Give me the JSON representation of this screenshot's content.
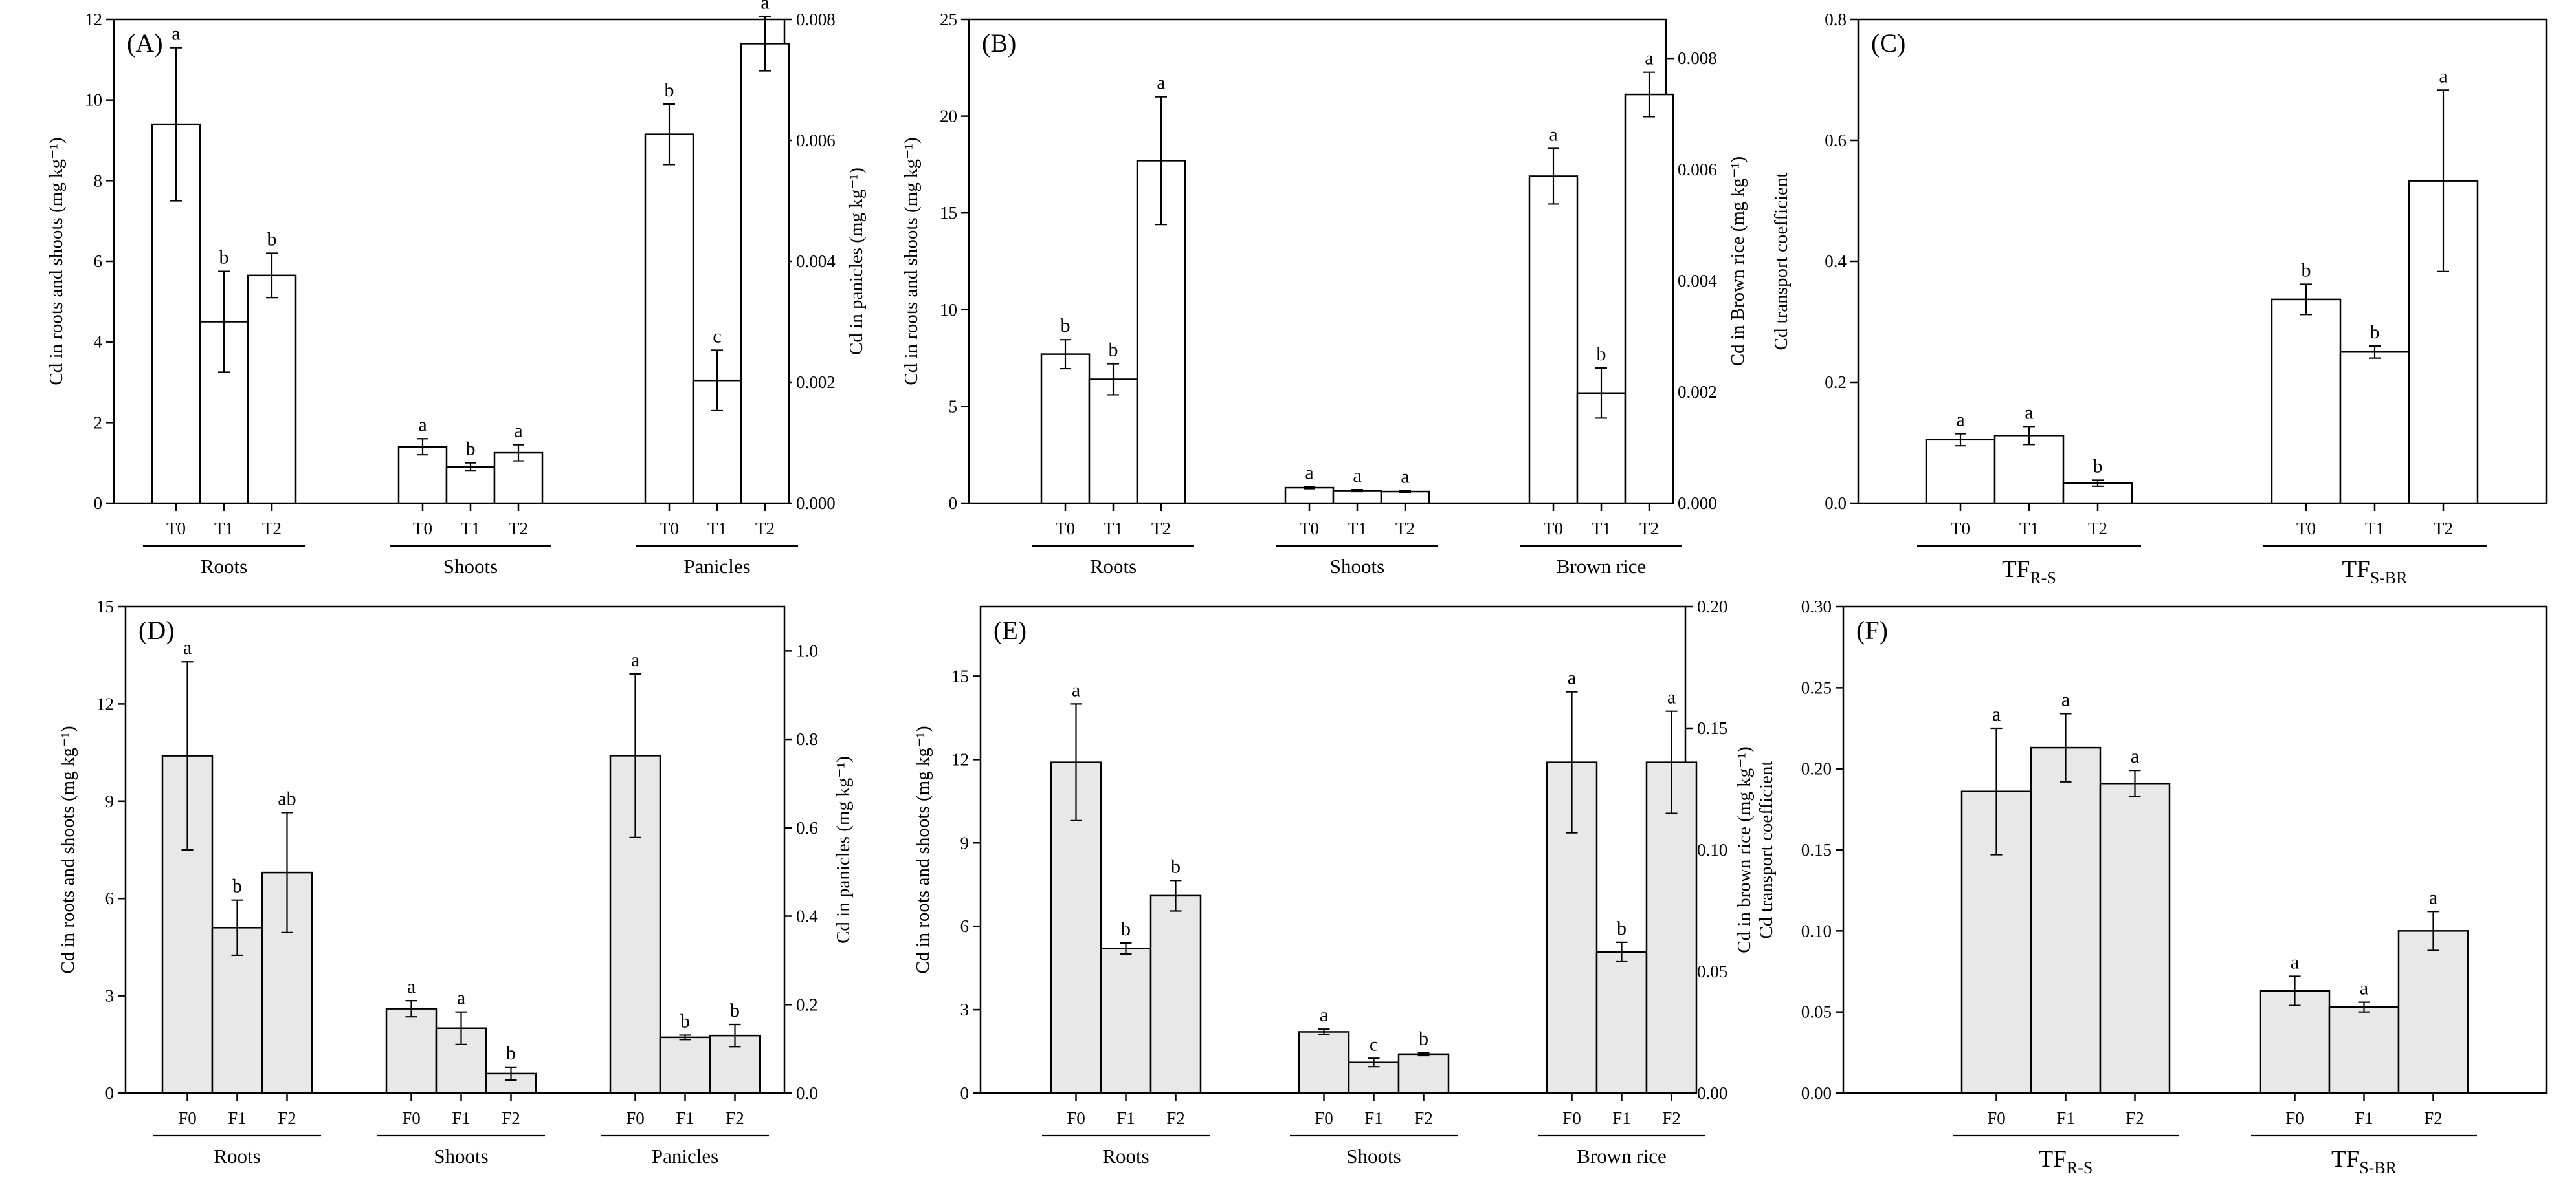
{
  "chart_data": [
    {
      "panel_label": "(A)",
      "type": "bar",
      "fill": "#ffffff",
      "ylabel": "Cd in roots and shoots (mg kg⁻¹)",
      "y2label": "Cd in panicles (mg kg⁻¹)",
      "ylim": [
        0,
        12
      ],
      "yticks": [
        "0",
        "2",
        "4",
        "6",
        "8",
        "10",
        "12"
      ],
      "y2lim": [
        0,
        0.008
      ],
      "y2ticks": [
        "0.000",
        "0.002",
        "0.004",
        "0.006",
        "0.008"
      ],
      "groups": [
        {
          "name": "Roots",
          "axis": "left",
          "bars": [
            {
              "x": "T0",
              "value": 9.4,
              "err": 1.9,
              "letter": "a"
            },
            {
              "x": "T1",
              "value": 4.5,
              "err": 1.25,
              "letter": "b"
            },
            {
              "x": "T2",
              "value": 5.65,
              "err": 0.55,
              "letter": "b"
            }
          ]
        },
        {
          "name": "Shoots",
          "axis": "left",
          "bars": [
            {
              "x": "T0",
              "value": 1.4,
              "err": 0.2,
              "letter": "a"
            },
            {
              "x": "T1",
              "value": 0.9,
              "err": 0.1,
              "letter": "b"
            },
            {
              "x": "T2",
              "value": 1.25,
              "err": 0.2,
              "letter": "a"
            }
          ]
        },
        {
          "name": "Panicles",
          "axis": "right",
          "bars": [
            {
              "x": "T0",
              "value": 0.0061,
              "err": 0.0005,
              "letter": "b"
            },
            {
              "x": "T1",
              "value": 0.00203,
              "err": 0.0005,
              "letter": "c"
            },
            {
              "x": "T2",
              "value": 0.0076,
              "err": 0.00045,
              "letter": "a"
            }
          ]
        }
      ]
    },
    {
      "panel_label": "(B)",
      "type": "bar",
      "fill": "#ffffff",
      "ylabel": "Cd in roots and shoots (mg kg⁻¹)",
      "y2label": "Cd in Brown rice (mg kg⁻¹)",
      "ylim": [
        0,
        25
      ],
      "yticks": [
        "0",
        "5",
        "10",
        "15",
        "20",
        "25"
      ],
      "y2lim": [
        0,
        0.0087
      ],
      "y2ticks": [
        "0.000",
        "0.002",
        "0.004",
        "0.006",
        "0.008"
      ],
      "groups": [
        {
          "name": "Roots",
          "axis": "left",
          "bars": [
            {
              "x": "T0",
              "value": 7.7,
              "err": 0.75,
              "letter": "b"
            },
            {
              "x": "T1",
              "value": 6.4,
              "err": 0.8,
              "letter": "b"
            },
            {
              "x": "T2",
              "value": 17.7,
              "err": 3.3,
              "letter": "a"
            }
          ]
        },
        {
          "name": "Shoots",
          "axis": "left",
          "bars": [
            {
              "x": "T0",
              "value": 0.8,
              "err": 0.05,
              "letter": "a"
            },
            {
              "x": "T1",
              "value": 0.65,
              "err": 0.05,
              "letter": "a"
            },
            {
              "x": "T2",
              "value": 0.6,
              "err": 0.05,
              "letter": "a"
            }
          ]
        },
        {
          "name": "Brown rice",
          "axis": "right",
          "bars": [
            {
              "x": "T0",
              "value": 0.00588,
              "err": 0.0005,
              "letter": "a"
            },
            {
              "x": "T1",
              "value": 0.00198,
              "err": 0.00045,
              "letter": "b"
            },
            {
              "x": "T2",
              "value": 0.00735,
              "err": 0.0004,
              "letter": "a"
            }
          ]
        }
      ]
    },
    {
      "panel_label": "(C)",
      "type": "bar",
      "fill": "#ffffff",
      "ylabel": "Cd transport coefficient",
      "ylim": [
        0,
        0.8
      ],
      "yticks": [
        "0.0",
        "0.2",
        "0.4",
        "0.6",
        "0.8"
      ],
      "groups": [
        {
          "name": "TF",
          "sub": "R-S",
          "axis": "left",
          "bars": [
            {
              "x": "T0",
              "value": 0.105,
              "err": 0.01,
              "letter": "a"
            },
            {
              "x": "T1",
              "value": 0.112,
              "err": 0.015,
              "letter": "a"
            },
            {
              "x": "T2",
              "value": 0.033,
              "err": 0.005,
              "letter": "b"
            }
          ]
        },
        {
          "name": "TF",
          "sub": "S-BR",
          "axis": "left",
          "bars": [
            {
              "x": "T0",
              "value": 0.337,
              "err": 0.025,
              "letter": "b"
            },
            {
              "x": "T1",
              "value": 0.25,
              "err": 0.01,
              "letter": "b"
            },
            {
              "x": "T2",
              "value": 0.533,
              "err": 0.15,
              "letter": "a"
            }
          ]
        }
      ]
    },
    {
      "panel_label": "(D)",
      "type": "bar",
      "fill": "#e8e8e8",
      "ylabel": "Cd in roots and shoots (mg kg⁻¹)",
      "y2label": "Cd in panicles (mg kg⁻¹)",
      "ylim": [
        0,
        15
      ],
      "yticks": [
        "0",
        "3",
        "6",
        "9",
        "12",
        "15"
      ],
      "y2lim": [
        0,
        1.1
      ],
      "y2ticks": [
        "0.0",
        "0.2",
        "0.4",
        "0.6",
        "0.8",
        "1.0"
      ],
      "groups": [
        {
          "name": "Roots",
          "axis": "left",
          "bars": [
            {
              "x": "F0",
              "value": 10.4,
              "err": 2.9,
              "letter": "a"
            },
            {
              "x": "F1",
              "value": 5.1,
              "err": 0.85,
              "letter": "b"
            },
            {
              "x": "F2",
              "value": 6.8,
              "err": 1.85,
              "letter": "ab"
            }
          ]
        },
        {
          "name": "Shoots",
          "axis": "left",
          "bars": [
            {
              "x": "F0",
              "value": 2.6,
              "err": 0.25,
              "letter": "a"
            },
            {
              "x": "F1",
              "value": 2.0,
              "err": 0.5,
              "letter": "a"
            },
            {
              "x": "F2",
              "value": 0.6,
              "err": 0.2,
              "letter": "b"
            }
          ]
        },
        {
          "name": "Panicles",
          "axis": "right",
          "bars": [
            {
              "x": "F0",
              "value": 0.763,
              "err": 0.185,
              "letter": "a"
            },
            {
              "x": "F1",
              "value": 0.126,
              "err": 0.005,
              "letter": "b"
            },
            {
              "x": "F2",
              "value": 0.13,
              "err": 0.025,
              "letter": "b"
            }
          ]
        }
      ]
    },
    {
      "panel_label": "(E)",
      "type": "bar",
      "fill": "#e8e8e8",
      "ylabel": "Cd in roots and shoots (mg kg⁻¹)",
      "y2label": "Cd in brown rice (mg kg⁻¹)",
      "ylim": [
        0,
        17.5
      ],
      "yticks": [
        "0",
        "3",
        "6",
        "9",
        "12",
        "15"
      ],
      "y2lim": [
        0,
        0.2
      ],
      "y2ticks": [
        "0.00",
        "0.05",
        "0.10",
        "0.15",
        "0.20"
      ],
      "groups": [
        {
          "name": "Roots",
          "axis": "left",
          "bars": [
            {
              "x": "F0",
              "value": 11.9,
              "err": 2.1,
              "letter": "a"
            },
            {
              "x": "F1",
              "value": 5.2,
              "err": 0.2,
              "letter": "b"
            },
            {
              "x": "F2",
              "value": 7.1,
              "err": 0.55,
              "letter": "b"
            }
          ]
        },
        {
          "name": "Shoots",
          "axis": "left",
          "bars": [
            {
              "x": "F0",
              "value": 2.2,
              "err": 0.1,
              "letter": "a"
            },
            {
              "x": "F1",
              "value": 1.1,
              "err": 0.15,
              "letter": "c"
            },
            {
              "x": "F2",
              "value": 1.4,
              "err": 0.05,
              "letter": "b"
            }
          ]
        },
        {
          "name": "Brown rice",
          "axis": "right",
          "bars": [
            {
              "x": "F0",
              "value": 0.136,
              "err": 0.029,
              "letter": "a"
            },
            {
              "x": "F1",
              "value": 0.058,
              "err": 0.004,
              "letter": "b"
            },
            {
              "x": "F2",
              "value": 0.136,
              "err": 0.021,
              "letter": "a"
            }
          ]
        }
      ]
    },
    {
      "panel_label": "(F)",
      "type": "bar",
      "fill": "#e8e8e8",
      "ylabel": "Cd transport coefficient",
      "ylim": [
        0,
        0.3
      ],
      "yticks": [
        "0.00",
        "0.05",
        "0.10",
        "0.15",
        "0.20",
        "0.25",
        "0.30"
      ],
      "groups": [
        {
          "name": "TF",
          "sub": "R-S",
          "axis": "left",
          "bars": [
            {
              "x": "F0",
              "value": 0.186,
              "err": 0.039,
              "letter": "a"
            },
            {
              "x": "F1",
              "value": 0.213,
              "err": 0.021,
              "letter": "a"
            },
            {
              "x": "F2",
              "value": 0.191,
              "err": 0.008,
              "letter": "a"
            }
          ]
        },
        {
          "name": "TF",
          "sub": "S-BR",
          "axis": "left",
          "bars": [
            {
              "x": "F0",
              "value": 0.063,
              "err": 0.009,
              "letter": "a"
            },
            {
              "x": "F1",
              "value": 0.053,
              "err": 0.003,
              "letter": "a"
            },
            {
              "x": "F2",
              "value": 0.1,
              "err": 0.012,
              "letter": "a"
            }
          ]
        }
      ]
    }
  ]
}
